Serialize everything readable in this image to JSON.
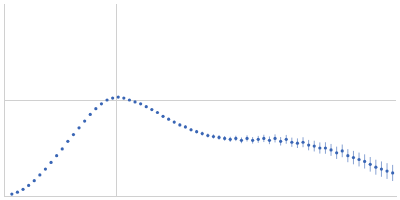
{
  "chart_data": {
    "type": "scatter",
    "color": "#3a66b5",
    "marker": "circle",
    "grid": true,
    "tick_labels": false,
    "xlim": [
      0,
      3.5
    ],
    "xticks": [
      1
    ],
    "ylim": [
      0,
      2
    ],
    "yticks": [
      1
    ],
    "x": [
      0.07,
      0.12,
      0.17,
      0.22,
      0.27,
      0.32,
      0.37,
      0.42,
      0.47,
      0.52,
      0.57,
      0.62,
      0.67,
      0.72,
      0.77,
      0.82,
      0.87,
      0.92,
      0.97,
      1.02,
      1.07,
      1.12,
      1.17,
      1.22,
      1.27,
      1.32,
      1.37,
      1.42,
      1.47,
      1.52,
      1.57,
      1.62,
      1.67,
      1.72,
      1.77,
      1.82,
      1.87,
      1.92,
      1.97,
      2.02,
      2.07,
      2.12,
      2.17,
      2.22,
      2.27,
      2.32,
      2.37,
      2.42,
      2.47,
      2.52,
      2.57,
      2.62,
      2.67,
      2.72,
      2.77,
      2.82,
      2.87,
      2.92,
      2.97,
      3.02,
      3.07,
      3.12,
      3.17,
      3.22,
      3.27,
      3.32,
      3.37,
      3.42,
      3.47
    ],
    "values": [
      0.02,
      0.04,
      0.07,
      0.11,
      0.16,
      0.22,
      0.28,
      0.35,
      0.42,
      0.49,
      0.57,
      0.64,
      0.71,
      0.78,
      0.85,
      0.91,
      0.96,
      1.0,
      1.02,
      1.03,
      1.02,
      1.0,
      0.98,
      0.96,
      0.93,
      0.9,
      0.87,
      0.83,
      0.8,
      0.77,
      0.74,
      0.72,
      0.69,
      0.67,
      0.65,
      0.63,
      0.62,
      0.61,
      0.6,
      0.59,
      0.6,
      0.58,
      0.6,
      0.58,
      0.59,
      0.6,
      0.58,
      0.6,
      0.57,
      0.59,
      0.56,
      0.55,
      0.56,
      0.53,
      0.52,
      0.5,
      0.5,
      0.48,
      0.45,
      0.47,
      0.42,
      0.4,
      0.38,
      0.36,
      0.33,
      0.3,
      0.28,
      0.26,
      0.24
    ],
    "errors": [
      0.005,
      0.005,
      0.005,
      0.005,
      0.005,
      0.005,
      0.005,
      0.005,
      0.005,
      0.005,
      0.005,
      0.005,
      0.005,
      0.005,
      0.005,
      0.005,
      0.006,
      0.006,
      0.006,
      0.007,
      0.007,
      0.008,
      0.008,
      0.009,
      0.01,
      0.01,
      0.011,
      0.012,
      0.013,
      0.014,
      0.015,
      0.016,
      0.017,
      0.018,
      0.02,
      0.021,
      0.022,
      0.024,
      0.025,
      0.027,
      0.028,
      0.03,
      0.032,
      0.034,
      0.036,
      0.038,
      0.04,
      0.042,
      0.044,
      0.046,
      0.048,
      0.05,
      0.052,
      0.054,
      0.056,
      0.058,
      0.06,
      0.062,
      0.064,
      0.066,
      0.068,
      0.07,
      0.072,
      0.074,
      0.076,
      0.078,
      0.08,
      0.082,
      0.084
    ]
  }
}
